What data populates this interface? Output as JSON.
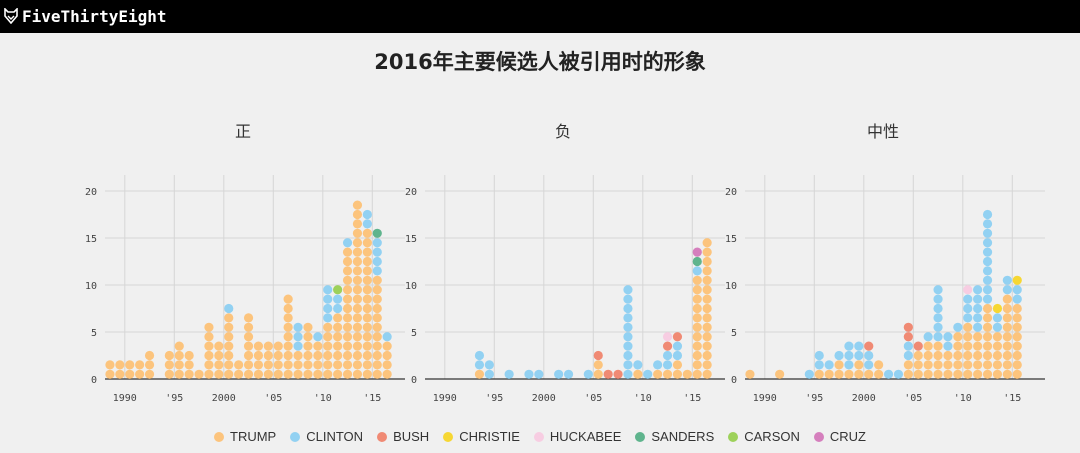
{
  "header": {
    "brand": "FiveThirtyEight",
    "logo_icon": "fox-head-icon"
  },
  "title": "2016年主要候选人被引用时的形象",
  "legend": [
    {
      "name": "TRUMP",
      "color": "#fcc47d"
    },
    {
      "name": "CLINTON",
      "color": "#92d1f2"
    },
    {
      "name": "BUSH",
      "color": "#f08a74"
    },
    {
      "name": "CHRISTIE",
      "color": "#f6d733"
    },
    {
      "name": "HUCKABEE",
      "color": "#f7cde2"
    },
    {
      "name": "SANDERS",
      "color": "#5fb48d"
    },
    {
      "name": "CARSON",
      "color": "#9dd15a"
    },
    {
      "name": "CRUZ",
      "color": "#d57fbd"
    }
  ],
  "chart_data": [
    {
      "type": "dot-histogram",
      "title": "正",
      "x_ticks": [
        "1990",
        "'95",
        "2000",
        "'05",
        "'10",
        "'15"
      ],
      "y_ticks": [
        0,
        5,
        10,
        15,
        20
      ],
      "xlim": [
        1988,
        2017
      ],
      "ylim": [
        0,
        22
      ],
      "grid": true,
      "columns": [
        {
          "year": 1988,
          "stack": [
            {
              "c": "TRUMP",
              "n": 2
            }
          ]
        },
        {
          "year": 1989,
          "stack": [
            {
              "c": "TRUMP",
              "n": 2
            }
          ]
        },
        {
          "year": 1990,
          "stack": [
            {
              "c": "TRUMP",
              "n": 2
            }
          ]
        },
        {
          "year": 1991,
          "stack": [
            {
              "c": "TRUMP",
              "n": 2
            }
          ]
        },
        {
          "year": 1992,
          "stack": [
            {
              "c": "TRUMP",
              "n": 3
            }
          ]
        },
        {
          "year": 1994,
          "stack": [
            {
              "c": "TRUMP",
              "n": 3
            }
          ]
        },
        {
          "year": 1995,
          "stack": [
            {
              "c": "TRUMP",
              "n": 4
            }
          ]
        },
        {
          "year": 1996,
          "stack": [
            {
              "c": "TRUMP",
              "n": 3
            }
          ]
        },
        {
          "year": 1997,
          "stack": [
            {
              "c": "TRUMP",
              "n": 1
            }
          ]
        },
        {
          "year": 1998,
          "stack": [
            {
              "c": "TRUMP",
              "n": 6
            }
          ]
        },
        {
          "year": 1999,
          "stack": [
            {
              "c": "TRUMP",
              "n": 4
            }
          ]
        },
        {
          "year": 2000,
          "stack": [
            {
              "c": "TRUMP",
              "n": 7
            },
            {
              "c": "CLINTON",
              "n": 1
            }
          ]
        },
        {
          "year": 2001,
          "stack": [
            {
              "c": "TRUMP",
              "n": 2
            }
          ]
        },
        {
          "year": 2002,
          "stack": [
            {
              "c": "TRUMP",
              "n": 7
            }
          ]
        },
        {
          "year": 2003,
          "stack": [
            {
              "c": "TRUMP",
              "n": 4
            }
          ]
        },
        {
          "year": 2004,
          "stack": [
            {
              "c": "TRUMP",
              "n": 4
            }
          ]
        },
        {
          "year": 2005,
          "stack": [
            {
              "c": "TRUMP",
              "n": 4
            }
          ]
        },
        {
          "year": 2006,
          "stack": [
            {
              "c": "TRUMP",
              "n": 9
            }
          ]
        },
        {
          "year": 2007,
          "stack": [
            {
              "c": "TRUMP",
              "n": 3
            },
            {
              "c": "CLINTON",
              "n": 3
            }
          ]
        },
        {
          "year": 2008,
          "stack": [
            {
              "c": "TRUMP",
              "n": 6
            }
          ]
        },
        {
          "year": 2009,
          "stack": [
            {
              "c": "TRUMP",
              "n": 4
            },
            {
              "c": "CLINTON",
              "n": 1
            }
          ]
        },
        {
          "year": 2010,
          "stack": [
            {
              "c": "TRUMP",
              "n": 6
            },
            {
              "c": "CLINTON",
              "n": 4
            }
          ]
        },
        {
          "year": 2011,
          "stack": [
            {
              "c": "TRUMP",
              "n": 7
            },
            {
              "c": "CLINTON",
              "n": 2
            },
            {
              "c": "CARSON",
              "n": 1
            }
          ]
        },
        {
          "year": 2012,
          "stack": [
            {
              "c": "TRUMP",
              "n": 14
            },
            {
              "c": "CLINTON",
              "n": 1
            }
          ]
        },
        {
          "year": 2013,
          "stack": [
            {
              "c": "TRUMP",
              "n": 19
            }
          ]
        },
        {
          "year": 2014,
          "stack": [
            {
              "c": "TRUMP",
              "n": 16
            },
            {
              "c": "CLINTON",
              "n": 2
            }
          ]
        },
        {
          "year": 2015,
          "stack": [
            {
              "c": "TRUMP",
              "n": 11
            },
            {
              "c": "CLINTON",
              "n": 4
            },
            {
              "c": "SANDERS",
              "n": 1
            }
          ]
        },
        {
          "year": 2016,
          "stack": [
            {
              "c": "TRUMP",
              "n": 4
            },
            {
              "c": "CLINTON",
              "n": 1
            }
          ]
        }
      ]
    },
    {
      "type": "dot-histogram",
      "title": "负",
      "x_ticks": [
        "1990",
        "'95",
        "2000",
        "'05",
        "'10",
        "'15"
      ],
      "y_ticks": [
        0,
        5,
        10,
        15,
        20
      ],
      "xlim": [
        1988,
        2017
      ],
      "ylim": [
        0,
        22
      ],
      "grid": true,
      "columns": [
        {
          "year": 1993,
          "stack": [
            {
              "c": "TRUMP",
              "n": 1
            },
            {
              "c": "CLINTON",
              "n": 2
            }
          ]
        },
        {
          "year": 1994,
          "stack": [
            {
              "c": "CLINTON",
              "n": 2
            }
          ]
        },
        {
          "year": 1996,
          "stack": [
            {
              "c": "CLINTON",
              "n": 1
            }
          ]
        },
        {
          "year": 1998,
          "stack": [
            {
              "c": "CLINTON",
              "n": 1
            }
          ]
        },
        {
          "year": 1999,
          "stack": [
            {
              "c": "CLINTON",
              "n": 1
            }
          ]
        },
        {
          "year": 2001,
          "stack": [
            {
              "c": "CLINTON",
              "n": 1
            }
          ]
        },
        {
          "year": 2002,
          "stack": [
            {
              "c": "CLINTON",
              "n": 1
            }
          ]
        },
        {
          "year": 2004,
          "stack": [
            {
              "c": "CLINTON",
              "n": 1
            }
          ]
        },
        {
          "year": 2005,
          "stack": [
            {
              "c": "TRUMP",
              "n": 2
            },
            {
              "c": "BUSH",
              "n": 1
            }
          ]
        },
        {
          "year": 2006,
          "stack": [
            {
              "c": "BUSH",
              "n": 1
            }
          ]
        },
        {
          "year": 2007,
          "stack": [
            {
              "c": "BUSH",
              "n": 1
            }
          ]
        },
        {
          "year": 2008,
          "stack": [
            {
              "c": "CLINTON",
              "n": 10
            }
          ]
        },
        {
          "year": 2009,
          "stack": [
            {
              "c": "TRUMP",
              "n": 1
            },
            {
              "c": "CLINTON",
              "n": 1
            }
          ]
        },
        {
          "year": 2010,
          "stack": [
            {
              "c": "CLINTON",
              "n": 1
            }
          ]
        },
        {
          "year": 2011,
          "stack": [
            {
              "c": "TRUMP",
              "n": 1
            },
            {
              "c": "CLINTON",
              "n": 1
            }
          ]
        },
        {
          "year": 2012,
          "stack": [
            {
              "c": "TRUMP",
              "n": 1
            },
            {
              "c": "CLINTON",
              "n": 2
            },
            {
              "c": "BUSH",
              "n": 1
            },
            {
              "c": "HUCKABEE",
              "n": 1
            }
          ]
        },
        {
          "year": 2013,
          "stack": [
            {
              "c": "TRUMP",
              "n": 2
            },
            {
              "c": "CLINTON",
              "n": 2
            },
            {
              "c": "BUSH",
              "n": 1
            }
          ]
        },
        {
          "year": 2014,
          "stack": [
            {
              "c": "TRUMP",
              "n": 1
            }
          ]
        },
        {
          "year": 2015,
          "stack": [
            {
              "c": "TRUMP",
              "n": 11
            },
            {
              "c": "CLINTON",
              "n": 1
            },
            {
              "c": "SANDERS",
              "n": 1
            },
            {
              "c": "CRUZ",
              "n": 1
            }
          ]
        },
        {
          "year": 2016,
          "stack": [
            {
              "c": "TRUMP",
              "n": 15
            }
          ]
        }
      ]
    },
    {
      "type": "dot-histogram",
      "title": "中性",
      "x_ticks": [
        "1990",
        "'95",
        "2000",
        "'05",
        "'10",
        "'15"
      ],
      "y_ticks": [
        0,
        5,
        10,
        15,
        20
      ],
      "xlim": [
        1988,
        2017
      ],
      "ylim": [
        0,
        22
      ],
      "grid": true,
      "columns": [
        {
          "year": 1988,
          "stack": [
            {
              "c": "TRUMP",
              "n": 1
            }
          ]
        },
        {
          "year": 1991,
          "stack": [
            {
              "c": "TRUMP",
              "n": 1
            }
          ]
        },
        {
          "year": 1994,
          "stack": [
            {
              "c": "CLINTON",
              "n": 1
            }
          ]
        },
        {
          "year": 1995,
          "stack": [
            {
              "c": "TRUMP",
              "n": 1
            },
            {
              "c": "CLINTON",
              "n": 2
            }
          ]
        },
        {
          "year": 1996,
          "stack": [
            {
              "c": "TRUMP",
              "n": 1
            },
            {
              "c": "CLINTON",
              "n": 1
            }
          ]
        },
        {
          "year": 1997,
          "stack": [
            {
              "c": "TRUMP",
              "n": 2
            },
            {
              "c": "CLINTON",
              "n": 1
            }
          ]
        },
        {
          "year": 1998,
          "stack": [
            {
              "c": "TRUMP",
              "n": 1
            },
            {
              "c": "CLINTON",
              "n": 3
            }
          ]
        },
        {
          "year": 1999,
          "stack": [
            {
              "c": "TRUMP",
              "n": 2
            },
            {
              "c": "CLINTON",
              "n": 2
            }
          ]
        },
        {
          "year": 2000,
          "stack": [
            {
              "c": "TRUMP",
              "n": 1
            },
            {
              "c": "CLINTON",
              "n": 2
            },
            {
              "c": "BUSH",
              "n": 1
            }
          ]
        },
        {
          "year": 2001,
          "stack": [
            {
              "c": "TRUMP",
              "n": 2
            }
          ]
        },
        {
          "year": 2002,
          "stack": [
            {
              "c": "CLINTON",
              "n": 1
            }
          ]
        },
        {
          "year": 2003,
          "stack": [
            {
              "c": "CLINTON",
              "n": 1
            }
          ]
        },
        {
          "year": 2004,
          "stack": [
            {
              "c": "TRUMP",
              "n": 2
            },
            {
              "c": "CLINTON",
              "n": 2
            },
            {
              "c": "BUSH",
              "n": 2
            }
          ]
        },
        {
          "year": 2005,
          "stack": [
            {
              "c": "TRUMP",
              "n": 3
            },
            {
              "c": "BUSH",
              "n": 1
            }
          ]
        },
        {
          "year": 2006,
          "stack": [
            {
              "c": "TRUMP",
              "n": 4
            },
            {
              "c": "CLINTON",
              "n": 1
            }
          ]
        },
        {
          "year": 2007,
          "stack": [
            {
              "c": "TRUMP",
              "n": 4
            },
            {
              "c": "CLINTON",
              "n": 6
            }
          ]
        },
        {
          "year": 2008,
          "stack": [
            {
              "c": "TRUMP",
              "n": 3
            },
            {
              "c": "CLINTON",
              "n": 2
            }
          ]
        },
        {
          "year": 2009,
          "stack": [
            {
              "c": "TRUMP",
              "n": 5
            },
            {
              "c": "CLINTON",
              "n": 1
            }
          ]
        },
        {
          "year": 2010,
          "stack": [
            {
              "c": "TRUMP",
              "n": 6
            },
            {
              "c": "CLINTON",
              "n": 3
            },
            {
              "c": "HUCKABEE",
              "n": 1
            }
          ]
        },
        {
          "year": 2011,
          "stack": [
            {
              "c": "TRUMP",
              "n": 5
            },
            {
              "c": "CLINTON",
              "n": 5
            }
          ]
        },
        {
          "year": 2012,
          "stack": [
            {
              "c": "TRUMP",
              "n": 8
            },
            {
              "c": "CLINTON",
              "n": 10
            }
          ]
        },
        {
          "year": 2013,
          "stack": [
            {
              "c": "TRUMP",
              "n": 5
            },
            {
              "c": "CLINTON",
              "n": 2
            },
            {
              "c": "CHRISTIE",
              "n": 1
            }
          ]
        },
        {
          "year": 2014,
          "stack": [
            {
              "c": "TRUMP",
              "n": 9
            },
            {
              "c": "CLINTON",
              "n": 2
            }
          ]
        },
        {
          "year": 2015,
          "stack": [
            {
              "c": "TRUMP",
              "n": 8
            },
            {
              "c": "CLINTON",
              "n": 2
            },
            {
              "c": "CHRISTIE",
              "n": 1
            }
          ]
        }
      ]
    }
  ]
}
